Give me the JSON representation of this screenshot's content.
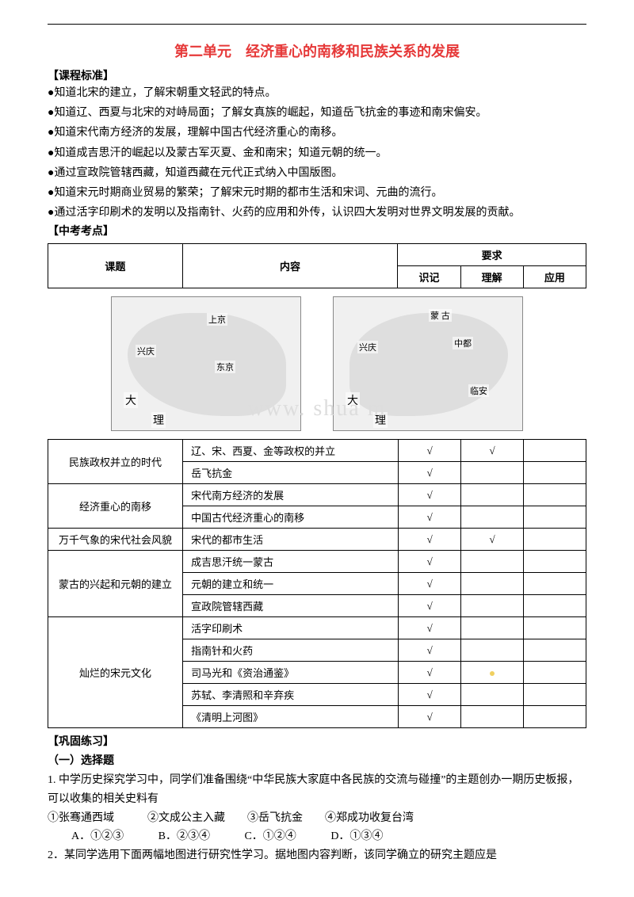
{
  "title": "第二单元　经济重心的南移和民族关系的发展",
  "title_color": "#e63939",
  "section_standards_label": "【课程标准】",
  "standards": [
    "●知道北宋的建立，了解宋朝重文轻武的特点。",
    "●知道辽、西夏与北宋的对峙局面；了解女真族的崛起，知道岳飞抗金的事迹和南宋偏安。",
    "●知道宋代南方经济的发展，理解中国古代经济重心的南移。",
    "●知道成吉思汗的崛起以及蒙古军灭夏、金和南宋；知道元朝的统一。",
    "●通过宣政院管辖西藏，知道西藏在元代正式纳入中国版图。",
    "●知道宋元时期商业贸易的繁荣；了解宋元时期的都市生活和宋词、元曲的流行。",
    "●通过活字印刷术的发明以及指南针、火药的应用和外传，认识四大发明对世界文明发展的贡献。"
  ],
  "section_exam_label": "【中考考点】",
  "header_table": {
    "col_topic": "课题",
    "col_content": "内容",
    "col_req": "要求",
    "req_sub": [
      "识记",
      "理解",
      "应用"
    ]
  },
  "map1_labels": {
    "l1": "上京",
    "l2": "兴庆",
    "l3": "东京",
    "l4": "大",
    "l5": "理"
  },
  "map2_labels": {
    "l1": "蒙 古",
    "l2": "兴庆",
    "l3": "中都",
    "l4": "临安",
    "l5": "大",
    "l6": "理"
  },
  "rows": [
    {
      "topic": "民族政权并立的时代",
      "rowspan": 2,
      "content": "辽、宋、西夏、金等政权的并立",
      "c1": "√",
      "c2": "√",
      "c3": ""
    },
    {
      "content": "岳飞抗金",
      "c1": "√",
      "c2": "",
      "c3": ""
    },
    {
      "topic": "经济重心的南移",
      "rowspan": 2,
      "content": "宋代南方经济的发展",
      "c1": "√",
      "c2": "",
      "c3": ""
    },
    {
      "content": "中国古代经济重心的南移",
      "c1": "√",
      "c2": "",
      "c3": ""
    },
    {
      "topic": "万千气象的宋代社会风貌",
      "rowspan": 1,
      "content": "宋代的都市生活",
      "c1": "√",
      "c2": "√",
      "c3": ""
    },
    {
      "topic": "蒙古的兴起和元朝的建立",
      "rowspan": 3,
      "content": "成吉思汗统一蒙古",
      "c1": "√",
      "c2": "",
      "c3": ""
    },
    {
      "content": "元朝的建立和统一",
      "c1": "√",
      "c2": "",
      "c3": ""
    },
    {
      "content": "宣政院管辖西藏",
      "c1": "√",
      "c2": "",
      "c3": ""
    },
    {
      "topic": "灿烂的宋元文化",
      "rowspan": 5,
      "content": "活字印刷术",
      "c1": "√",
      "c2": "",
      "c3": ""
    },
    {
      "content": "指南针和火药",
      "c1": "√",
      "c2": "",
      "c3": ""
    },
    {
      "content": "司马光和《资治通鉴》",
      "c1": "√",
      "c2": "dot",
      "c3": ""
    },
    {
      "content": "苏轼、李清照和辛弃疾",
      "c1": "√",
      "c2": "",
      "c3": ""
    },
    {
      "content": "《清明上河图》",
      "c1": "√",
      "c2": "",
      "c3": ""
    }
  ],
  "section_practice_label": "【巩固练习】",
  "practice_sub": "（一）选择题",
  "q1_text": "1. 中学历史探究学习中，同学们准备围绕“中华民族大家庭中各民族的交流与碰撞”的主题创办一期历史板报，可以收集的相关史料有",
  "q1_items": "①张骞通西域　　　②文成公主入藏　　③岳飞抗金　　④郑成功收复台湾",
  "q1_options": {
    "A": "A．①②③",
    "B": "B．②③④",
    "C": "C．①②④",
    "D": "D．①③④"
  },
  "q2_text": "2．某同学选用下面两幅地图进行研究性学习。据地图内容判断，该同学确立的研究主题应是",
  "watermark_text": "www.     shua      m"
}
